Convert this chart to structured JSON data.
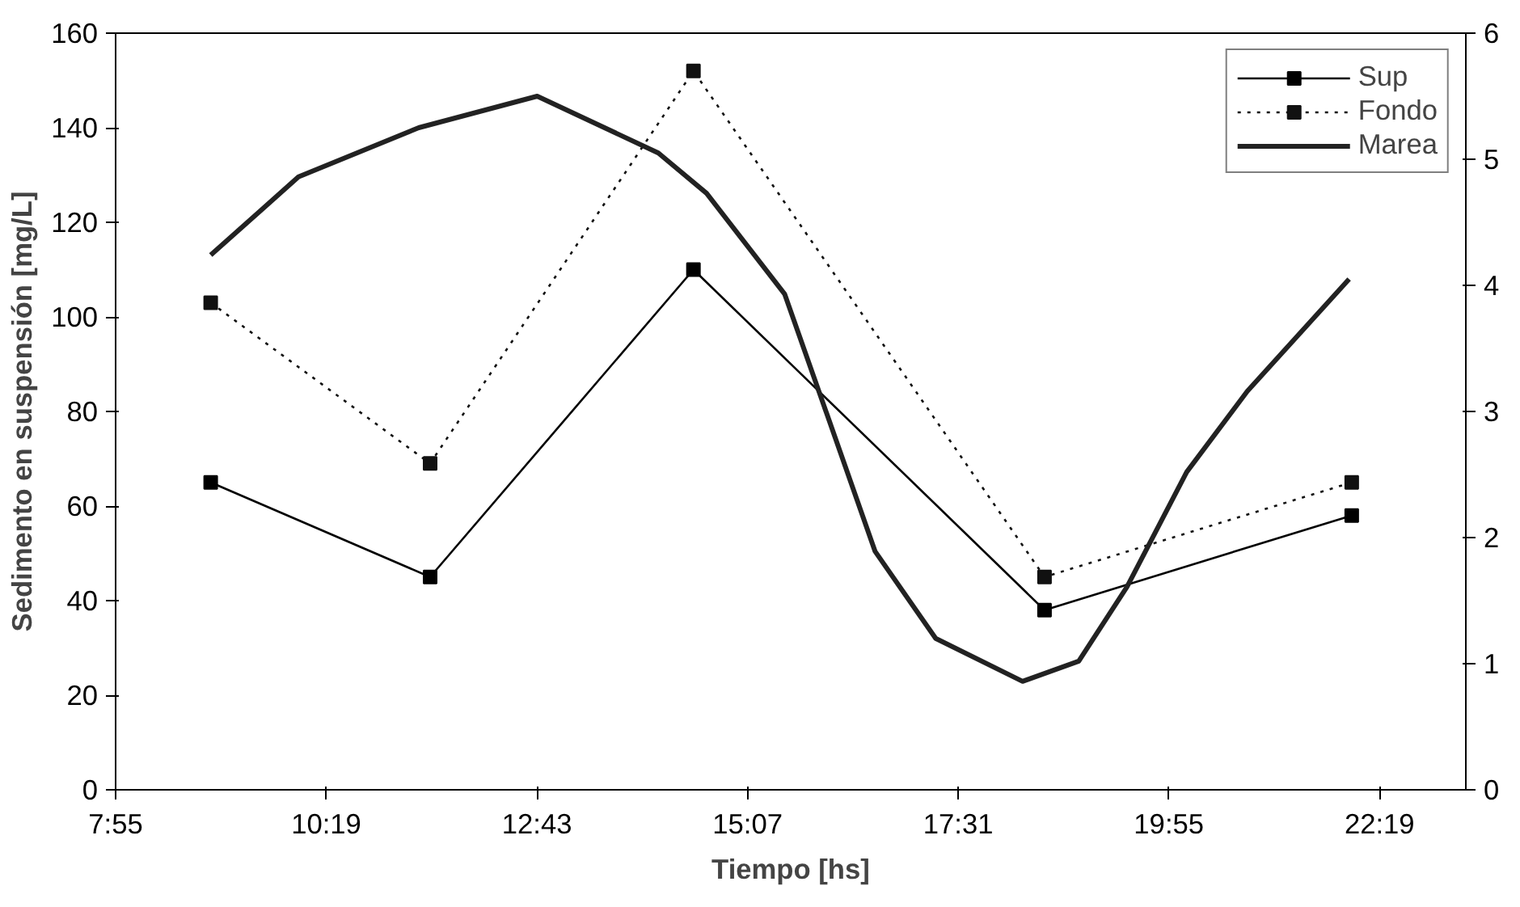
{
  "chart_data": {
    "type": "line",
    "xlabel": "Tiempo [hs]",
    "ylabel": "Sedimento en suspensión [mg/L]",
    "xlim": [
      7.9167,
      23.3
    ],
    "xticks": [
      {
        "value": 7.9167,
        "label": "7:55"
      },
      {
        "value": 10.3167,
        "label": "10:19"
      },
      {
        "value": 12.7167,
        "label": "12:43"
      },
      {
        "value": 15.1167,
        "label": "15:07"
      },
      {
        "value": 17.5167,
        "label": "17:31"
      },
      {
        "value": 19.9167,
        "label": "19:55"
      },
      {
        "value": 22.3167,
        "label": "22:19"
      }
    ],
    "ylim": [
      0,
      160
    ],
    "yticks": [
      0,
      20,
      40,
      60,
      80,
      100,
      120,
      140,
      160
    ],
    "y2lim": [
      0,
      6
    ],
    "y2ticks": [
      0,
      1,
      2,
      3,
      4,
      5,
      6
    ],
    "grid": false,
    "legend": "top right",
    "series": [
      {
        "name": "Sup",
        "color": "#000000",
        "marker": "square",
        "line_style": "solid",
        "x": [
          9.0,
          11.5,
          14.5,
          18.5,
          22.0
        ],
        "values": [
          65,
          45,
          110,
          38,
          58
        ]
      },
      {
        "name": "Fondo",
        "color": "#111111",
        "marker": "square",
        "line_style": "dotted",
        "x": [
          9.0,
          11.5,
          14.5,
          18.5,
          22.0
        ],
        "values": [
          103,
          69,
          152,
          45,
          65
        ]
      },
      {
        "name": "Marea",
        "color": "#222222",
        "marker": "none",
        "line_style": "solid",
        "axis": "y2",
        "x": [
          9.0,
          10.0,
          11.37,
          12.72,
          14.1,
          14.65,
          15.54,
          16.02,
          16.57,
          17.26,
          18.25,
          18.89,
          19.44,
          20.12,
          20.81,
          21.97
        ],
        "values": [
          4.24,
          4.86,
          5.25,
          5.5,
          5.05,
          4.73,
          3.93,
          2.98,
          1.89,
          1.2,
          0.86,
          1.02,
          1.61,
          2.52,
          3.16,
          4.05
        ]
      }
    ]
  }
}
